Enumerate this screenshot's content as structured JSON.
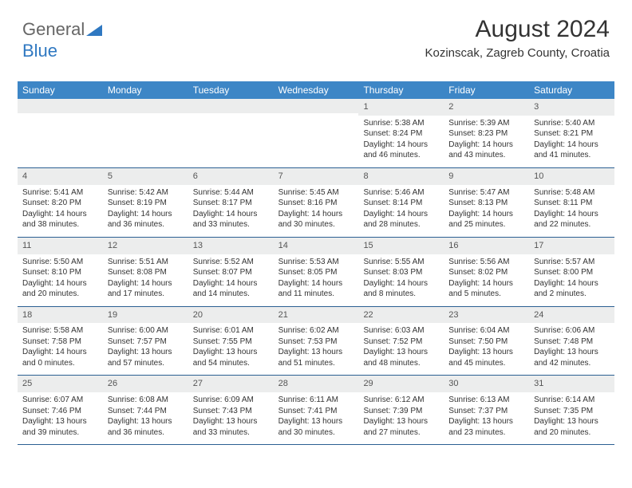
{
  "logo": {
    "part1": "General",
    "part2": "Blue"
  },
  "header": {
    "month_title": "August 2024",
    "location": "Kozinscak, Zagreb County, Croatia"
  },
  "colors": {
    "header_bar": "#3d86c6",
    "header_text": "#ffffff",
    "daynum_bg": "#eceded",
    "week_divider": "#2b5f92",
    "logo_accent": "#2f78c1",
    "text": "#333333"
  },
  "typography": {
    "month_fontsize_pt": 22,
    "location_fontsize_pt": 11,
    "dayhead_fontsize_pt": 9,
    "cell_fontsize_pt": 7.5
  },
  "layout": {
    "columns": 7,
    "rows": 5,
    "logo_triangle_color": "#2f78c1"
  },
  "day_names": [
    "Sunday",
    "Monday",
    "Tuesday",
    "Wednesday",
    "Thursday",
    "Friday",
    "Saturday"
  ],
  "weeks": [
    [
      {
        "n": "",
        "sr": "",
        "ss": "",
        "dl": ""
      },
      {
        "n": "",
        "sr": "",
        "ss": "",
        "dl": ""
      },
      {
        "n": "",
        "sr": "",
        "ss": "",
        "dl": ""
      },
      {
        "n": "",
        "sr": "",
        "ss": "",
        "dl": ""
      },
      {
        "n": "1",
        "sr": "Sunrise: 5:38 AM",
        "ss": "Sunset: 8:24 PM",
        "dl": "Daylight: 14 hours and 46 minutes."
      },
      {
        "n": "2",
        "sr": "Sunrise: 5:39 AM",
        "ss": "Sunset: 8:23 PM",
        "dl": "Daylight: 14 hours and 43 minutes."
      },
      {
        "n": "3",
        "sr": "Sunrise: 5:40 AM",
        "ss": "Sunset: 8:21 PM",
        "dl": "Daylight: 14 hours and 41 minutes."
      }
    ],
    [
      {
        "n": "4",
        "sr": "Sunrise: 5:41 AM",
        "ss": "Sunset: 8:20 PM",
        "dl": "Daylight: 14 hours and 38 minutes."
      },
      {
        "n": "5",
        "sr": "Sunrise: 5:42 AM",
        "ss": "Sunset: 8:19 PM",
        "dl": "Daylight: 14 hours and 36 minutes."
      },
      {
        "n": "6",
        "sr": "Sunrise: 5:44 AM",
        "ss": "Sunset: 8:17 PM",
        "dl": "Daylight: 14 hours and 33 minutes."
      },
      {
        "n": "7",
        "sr": "Sunrise: 5:45 AM",
        "ss": "Sunset: 8:16 PM",
        "dl": "Daylight: 14 hours and 30 minutes."
      },
      {
        "n": "8",
        "sr": "Sunrise: 5:46 AM",
        "ss": "Sunset: 8:14 PM",
        "dl": "Daylight: 14 hours and 28 minutes."
      },
      {
        "n": "9",
        "sr": "Sunrise: 5:47 AM",
        "ss": "Sunset: 8:13 PM",
        "dl": "Daylight: 14 hours and 25 minutes."
      },
      {
        "n": "10",
        "sr": "Sunrise: 5:48 AM",
        "ss": "Sunset: 8:11 PM",
        "dl": "Daylight: 14 hours and 22 minutes."
      }
    ],
    [
      {
        "n": "11",
        "sr": "Sunrise: 5:50 AM",
        "ss": "Sunset: 8:10 PM",
        "dl": "Daylight: 14 hours and 20 minutes."
      },
      {
        "n": "12",
        "sr": "Sunrise: 5:51 AM",
        "ss": "Sunset: 8:08 PM",
        "dl": "Daylight: 14 hours and 17 minutes."
      },
      {
        "n": "13",
        "sr": "Sunrise: 5:52 AM",
        "ss": "Sunset: 8:07 PM",
        "dl": "Daylight: 14 hours and 14 minutes."
      },
      {
        "n": "14",
        "sr": "Sunrise: 5:53 AM",
        "ss": "Sunset: 8:05 PM",
        "dl": "Daylight: 14 hours and 11 minutes."
      },
      {
        "n": "15",
        "sr": "Sunrise: 5:55 AM",
        "ss": "Sunset: 8:03 PM",
        "dl": "Daylight: 14 hours and 8 minutes."
      },
      {
        "n": "16",
        "sr": "Sunrise: 5:56 AM",
        "ss": "Sunset: 8:02 PM",
        "dl": "Daylight: 14 hours and 5 minutes."
      },
      {
        "n": "17",
        "sr": "Sunrise: 5:57 AM",
        "ss": "Sunset: 8:00 PM",
        "dl": "Daylight: 14 hours and 2 minutes."
      }
    ],
    [
      {
        "n": "18",
        "sr": "Sunrise: 5:58 AM",
        "ss": "Sunset: 7:58 PM",
        "dl": "Daylight: 14 hours and 0 minutes."
      },
      {
        "n": "19",
        "sr": "Sunrise: 6:00 AM",
        "ss": "Sunset: 7:57 PM",
        "dl": "Daylight: 13 hours and 57 minutes."
      },
      {
        "n": "20",
        "sr": "Sunrise: 6:01 AM",
        "ss": "Sunset: 7:55 PM",
        "dl": "Daylight: 13 hours and 54 minutes."
      },
      {
        "n": "21",
        "sr": "Sunrise: 6:02 AM",
        "ss": "Sunset: 7:53 PM",
        "dl": "Daylight: 13 hours and 51 minutes."
      },
      {
        "n": "22",
        "sr": "Sunrise: 6:03 AM",
        "ss": "Sunset: 7:52 PM",
        "dl": "Daylight: 13 hours and 48 minutes."
      },
      {
        "n": "23",
        "sr": "Sunrise: 6:04 AM",
        "ss": "Sunset: 7:50 PM",
        "dl": "Daylight: 13 hours and 45 minutes."
      },
      {
        "n": "24",
        "sr": "Sunrise: 6:06 AM",
        "ss": "Sunset: 7:48 PM",
        "dl": "Daylight: 13 hours and 42 minutes."
      }
    ],
    [
      {
        "n": "25",
        "sr": "Sunrise: 6:07 AM",
        "ss": "Sunset: 7:46 PM",
        "dl": "Daylight: 13 hours and 39 minutes."
      },
      {
        "n": "26",
        "sr": "Sunrise: 6:08 AM",
        "ss": "Sunset: 7:44 PM",
        "dl": "Daylight: 13 hours and 36 minutes."
      },
      {
        "n": "27",
        "sr": "Sunrise: 6:09 AM",
        "ss": "Sunset: 7:43 PM",
        "dl": "Daylight: 13 hours and 33 minutes."
      },
      {
        "n": "28",
        "sr": "Sunrise: 6:11 AM",
        "ss": "Sunset: 7:41 PM",
        "dl": "Daylight: 13 hours and 30 minutes."
      },
      {
        "n": "29",
        "sr": "Sunrise: 6:12 AM",
        "ss": "Sunset: 7:39 PM",
        "dl": "Daylight: 13 hours and 27 minutes."
      },
      {
        "n": "30",
        "sr": "Sunrise: 6:13 AM",
        "ss": "Sunset: 7:37 PM",
        "dl": "Daylight: 13 hours and 23 minutes."
      },
      {
        "n": "31",
        "sr": "Sunrise: 6:14 AM",
        "ss": "Sunset: 7:35 PM",
        "dl": "Daylight: 13 hours and 20 minutes."
      }
    ]
  ]
}
